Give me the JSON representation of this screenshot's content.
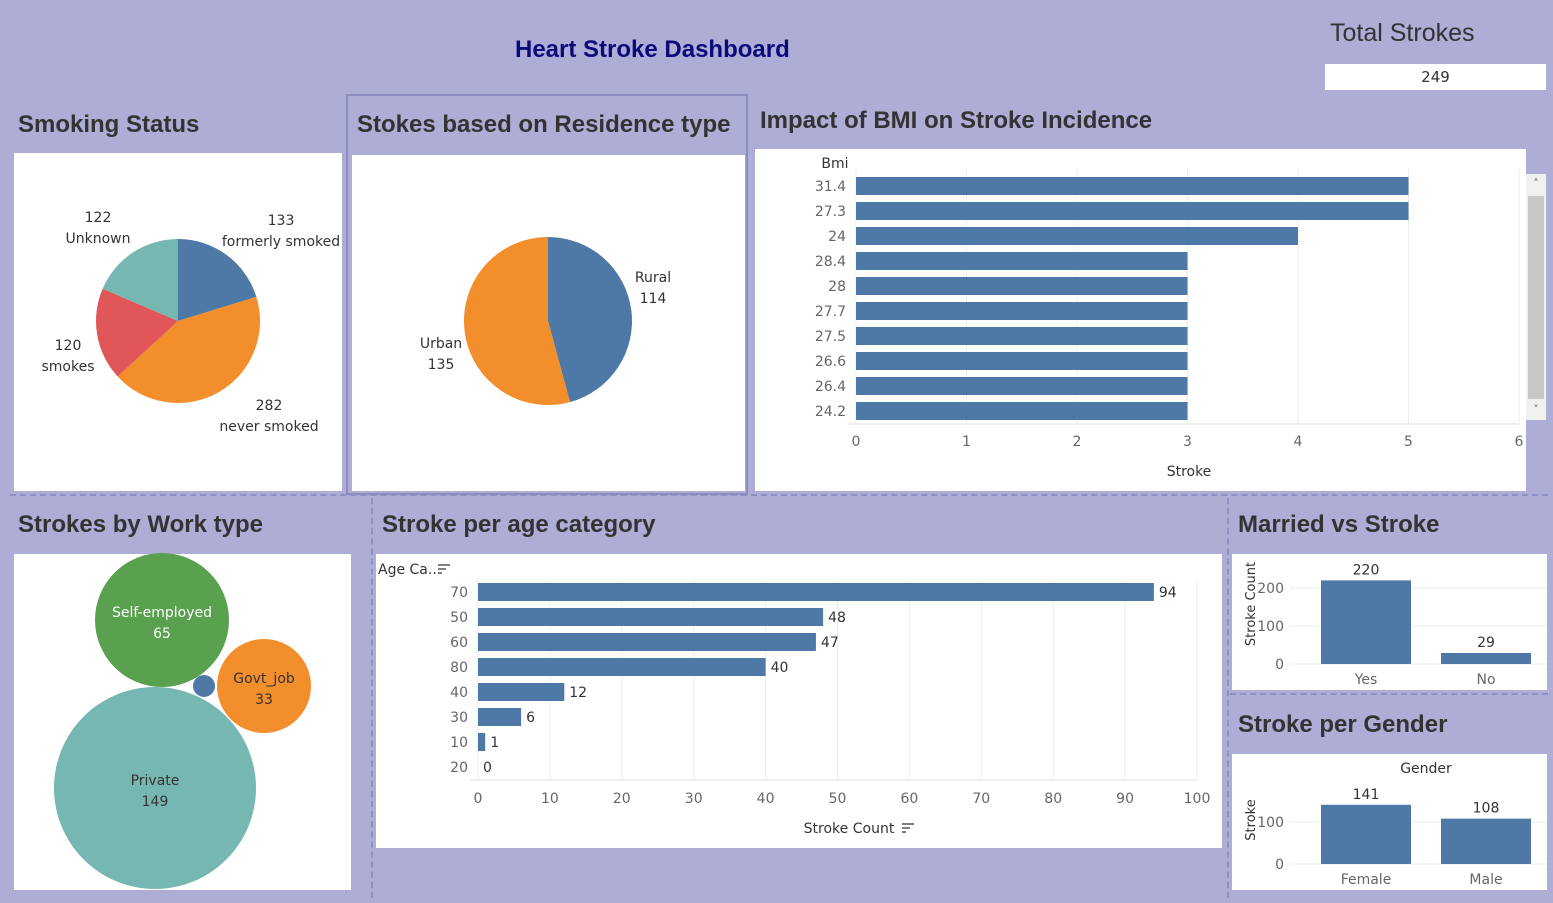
{
  "dashboard": {
    "title": "Heart Stroke Dashboard",
    "total_label": "Total Strokes",
    "total_value": "249"
  },
  "panels": {
    "smoking": "Smoking Status",
    "residence": "Stokes based on Residence type",
    "bmi": "Impact of BMI on Stroke Incidence",
    "work": "Strokes by Work type",
    "age": "Stroke per age category",
    "married": "Married vs Stroke",
    "gender": "Stroke per Gender"
  },
  "colors": {
    "blue": "#4e79a7",
    "orange": "#f28e2b",
    "red": "#e15759",
    "teal": "#76b7b2",
    "green": "#59a14f"
  },
  "chart_data": [
    {
      "id": "smoking",
      "type": "pie",
      "title": "Smoking Status",
      "slices": [
        {
          "name": "formerly smoked",
          "value": 133,
          "color": "#4e79a7"
        },
        {
          "name": "never smoked",
          "value": 282,
          "color": "#f28e2b"
        },
        {
          "name": "smokes",
          "value": 120,
          "color": "#e15759"
        },
        {
          "name": "Unknown",
          "value": 122,
          "color": "#76b7b2"
        }
      ]
    },
    {
      "id": "residence",
      "type": "pie",
      "title": "Stokes based on Residence type",
      "slices": [
        {
          "name": "Rural",
          "value": 114,
          "color": "#4e79a7"
        },
        {
          "name": "Urban",
          "value": 135,
          "color": "#f28e2b"
        }
      ]
    },
    {
      "id": "bmi",
      "type": "bar",
      "orientation": "horizontal",
      "title": "Impact of BMI on Stroke Incidence",
      "ylabel": "Bmi",
      "xlabel": "Stroke",
      "categories": [
        "31.4",
        "27.3",
        "24",
        "28.4",
        "28",
        "27.7",
        "27.5",
        "26.6",
        "26.4",
        "24.2"
      ],
      "values": [
        5,
        5,
        4,
        3,
        3,
        3,
        3,
        3,
        3,
        3
      ],
      "xticks": [
        0,
        1,
        2,
        3,
        4,
        5,
        6
      ],
      "xlim": [
        0,
        6
      ]
    },
    {
      "id": "work",
      "type": "bubble",
      "title": "Strokes by Work type",
      "items": [
        {
          "name": "Self-employed",
          "value": 65,
          "color": "#59a14f"
        },
        {
          "name": "Govt_job",
          "value": 33,
          "color": "#f28e2b"
        },
        {
          "name": "Private",
          "value": 149,
          "color": "#76b7b2"
        },
        {
          "name": "",
          "value": 2,
          "color": "#4e79a7"
        }
      ]
    },
    {
      "id": "age",
      "type": "bar",
      "orientation": "horizontal",
      "title": "Stroke per age category",
      "ylabel": "Age Ca..",
      "xlabel": "Stroke Count",
      "categories": [
        "70",
        "50",
        "60",
        "80",
        "40",
        "30",
        "10",
        "20"
      ],
      "values": [
        94,
        48,
        47,
        40,
        12,
        6,
        1,
        0
      ],
      "xticks": [
        0,
        10,
        20,
        30,
        40,
        50,
        60,
        70,
        80,
        90,
        100
      ],
      "xlim": [
        0,
        100
      ]
    },
    {
      "id": "married",
      "type": "bar",
      "title": "Married vs Stroke",
      "ylabel": "Stroke Count",
      "categories": [
        "Yes",
        "No"
      ],
      "values": [
        220,
        29
      ],
      "yticks": [
        0,
        100,
        200
      ]
    },
    {
      "id": "gender",
      "type": "bar",
      "title": "Stroke per Gender",
      "header": "Gender",
      "ylabel": "Stroke",
      "categories": [
        "Female",
        "Male"
      ],
      "values": [
        141,
        108
      ],
      "yticks": [
        0,
        100
      ]
    }
  ]
}
